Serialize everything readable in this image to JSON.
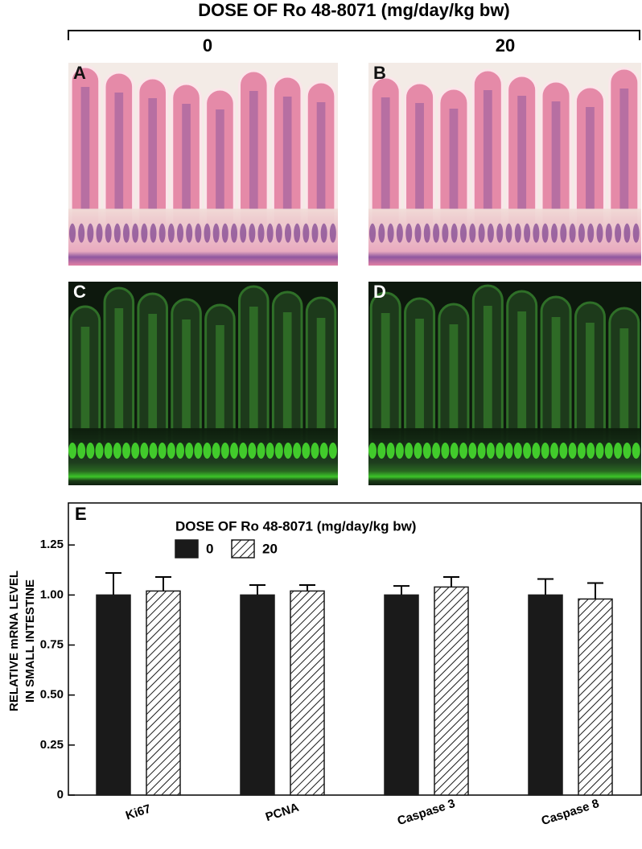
{
  "header": {
    "title": "DOSE OF Ro 48-8071 (mg/day/kg bw)",
    "doses": [
      "0",
      "20"
    ]
  },
  "images": {
    "labels": [
      "A",
      "B",
      "C",
      "D"
    ]
  },
  "chart_data": {
    "type": "bar",
    "panel_label": "E",
    "legend_title": "DOSE OF Ro 48-8071 (mg/day/kg bw)",
    "ylabel": [
      "RELATIVE mRNA LEVEL",
      "IN SMALL INTESTINE"
    ],
    "categories": [
      "Ki67",
      "PCNA",
      "Caspase 3",
      "Caspase 8"
    ],
    "series": [
      {
        "name": "0",
        "color": "#1a1a1a",
        "pattern": "solid",
        "values": [
          1.0,
          1.0,
          1.0,
          1.0
        ],
        "errors": [
          0.11,
          0.05,
          0.045,
          0.08
        ]
      },
      {
        "name": "20",
        "color": "#1a1a1a",
        "pattern": "hatch",
        "values": [
          1.02,
          1.02,
          1.04,
          0.98
        ],
        "errors": [
          0.07,
          0.03,
          0.05,
          0.08
        ]
      }
    ],
    "ylim": [
      0,
      1.46
    ],
    "yticks": [
      0,
      0.25,
      {
        "value": 0.5,
        "label": "0.50"
      },
      0.75,
      {
        "value": 1,
        "label": "1.00"
      },
      1.25
    ],
    "legend": "top-left",
    "grid": false
  }
}
